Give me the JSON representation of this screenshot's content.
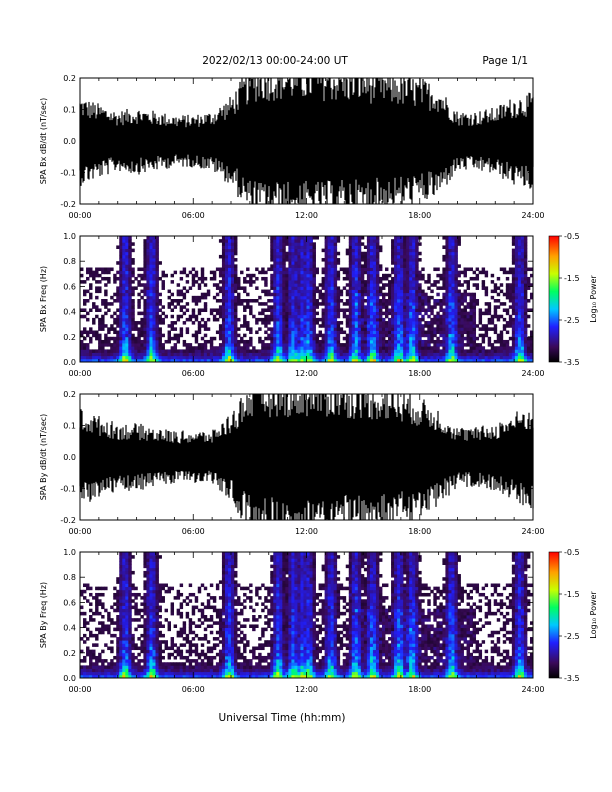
{
  "header": {
    "title": "2022/02/13  00:00-24:00 UT",
    "page": "Page 1/1"
  },
  "xlabel": "Universal Time (hh:mm)",
  "chart_data": [
    {
      "type": "line",
      "ylabel": "SPA Bx dB/dt (nT/sec)",
      "xlim": [
        0,
        24
      ],
      "ylim": [
        -0.2,
        0.2
      ],
      "x_ticks": [
        "00:00",
        "06:00",
        "12:00",
        "18:00",
        "24:00"
      ],
      "y_ticks": [
        "-0.2",
        "-0.1",
        "0.0",
        "0.1",
        "0.2"
      ],
      "envelope": {
        "hours": [
          0,
          1,
          2,
          3,
          4,
          5,
          6,
          7,
          8,
          9,
          10,
          11,
          12,
          13,
          14,
          15,
          16,
          17,
          18,
          19,
          20,
          21,
          22,
          23,
          24
        ],
        "amplitude": [
          0.12,
          0.1,
          0.08,
          0.09,
          0.08,
          0.07,
          0.07,
          0.08,
          0.12,
          0.2,
          0.21,
          0.21,
          0.21,
          0.21,
          0.2,
          0.2,
          0.19,
          0.18,
          0.17,
          0.15,
          0.08,
          0.08,
          0.09,
          0.12,
          0.13
        ]
      }
    },
    {
      "type": "heatmap",
      "ylabel": "SPA Bx Freq (Hz)",
      "xlim": [
        0,
        24
      ],
      "ylim": [
        0.0,
        1.0
      ],
      "x_ticks": [
        "00:00",
        "06:00",
        "12:00",
        "18:00",
        "24:00"
      ],
      "y_ticks": [
        "0.0",
        "0.2",
        "0.4",
        "0.6",
        "0.8",
        "1.0"
      ],
      "colorbar": {
        "label": "Log₁₀ Power",
        "range": [
          -3.5,
          -0.5
        ],
        "ticks": [
          "-0.5",
          "-1.5",
          "-2.5",
          "-3.5"
        ]
      },
      "activity_hours": [
        2.4,
        3.8,
        7.9,
        10.5,
        11.3,
        11.8,
        12.1,
        13.3,
        14.6,
        15.5,
        16.9,
        17.6,
        19.7,
        23.3
      ]
    },
    {
      "type": "line",
      "ylabel": "SPA By dB/dt (nT/sec)",
      "xlim": [
        0,
        24
      ],
      "ylim": [
        -0.2,
        0.2
      ],
      "x_ticks": [
        "00:00",
        "06:00",
        "12:00",
        "18:00",
        "24:00"
      ],
      "y_ticks": [
        "-0.2",
        "-0.1",
        "0.0",
        "0.1",
        "0.2"
      ],
      "envelope": {
        "hours": [
          0,
          1,
          2,
          3,
          4,
          5,
          6,
          7,
          8,
          9,
          10,
          11,
          12,
          13,
          14,
          15,
          16,
          17,
          18,
          19,
          20,
          21,
          22,
          23,
          24
        ],
        "amplitude": [
          0.13,
          0.11,
          0.09,
          0.09,
          0.08,
          0.07,
          0.07,
          0.07,
          0.12,
          0.2,
          0.21,
          0.21,
          0.21,
          0.21,
          0.2,
          0.2,
          0.19,
          0.18,
          0.16,
          0.13,
          0.08,
          0.08,
          0.09,
          0.12,
          0.14
        ]
      }
    },
    {
      "type": "heatmap",
      "ylabel": "SPA By Freq (Hz)",
      "xlim": [
        0,
        24
      ],
      "ylim": [
        0.0,
        1.0
      ],
      "x_ticks": [
        "00:00",
        "06:00",
        "12:00",
        "18:00",
        "24:00"
      ],
      "y_ticks": [
        "0.0",
        "0.2",
        "0.4",
        "0.6",
        "0.8",
        "1.0"
      ],
      "colorbar": {
        "label": "Log₁₀ Power",
        "range": [
          -3.5,
          -0.5
        ],
        "ticks": [
          "-0.5",
          "-1.5",
          "-2.5",
          "-3.5"
        ]
      },
      "activity_hours": [
        2.4,
        3.8,
        7.9,
        10.5,
        11.3,
        11.8,
        12.1,
        13.3,
        14.6,
        15.5,
        16.9,
        17.6,
        19.7,
        23.3
      ]
    }
  ]
}
